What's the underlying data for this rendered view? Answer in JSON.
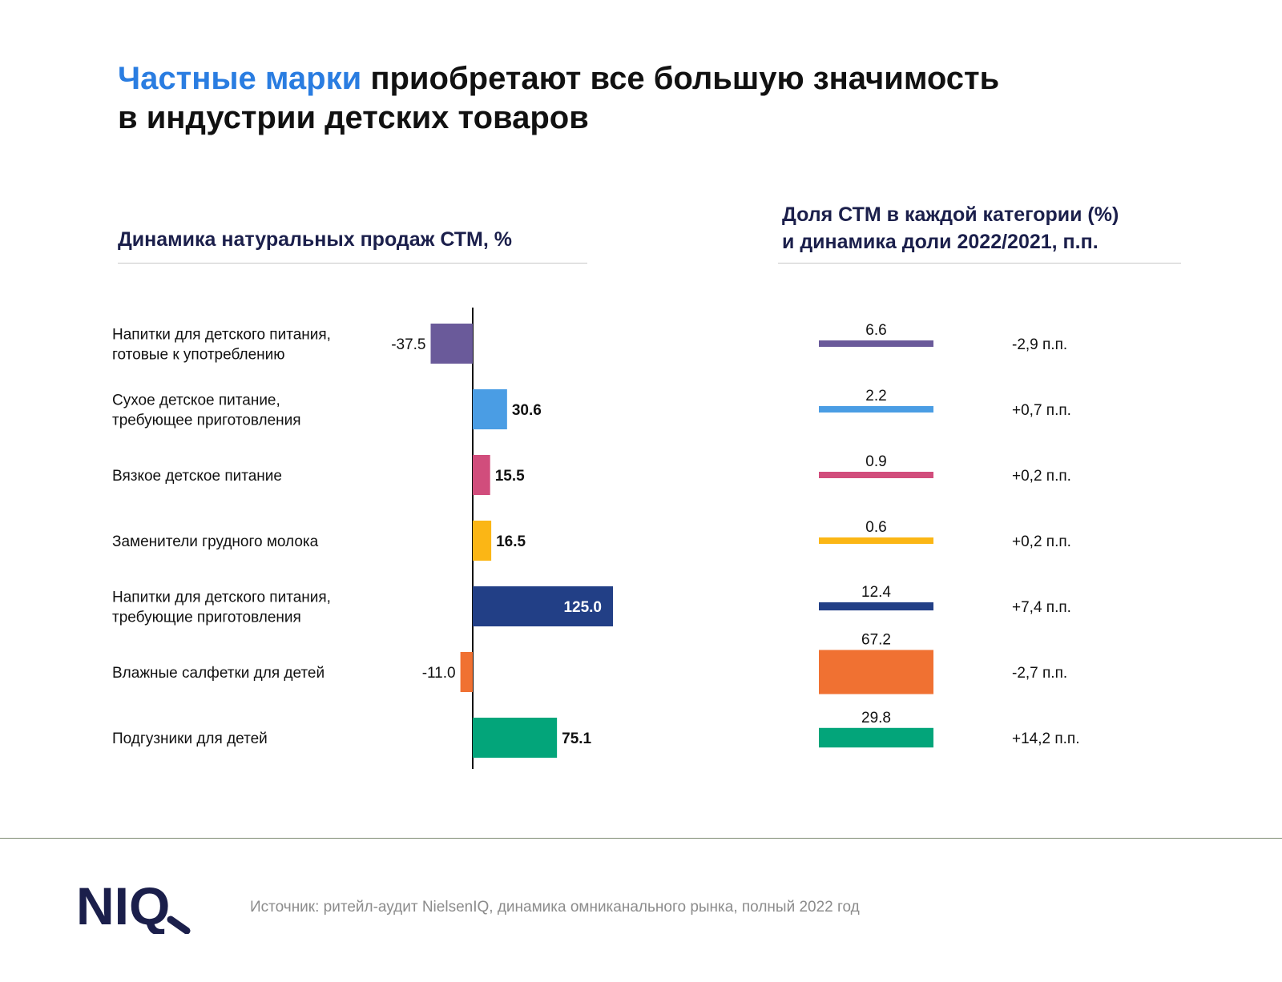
{
  "headline": {
    "accent": "Частные марки",
    "line1_rest": " приобретают все большую значимость",
    "line2": "в индустрии детских товаров"
  },
  "left_title": "Динамика натуральных продаж СТМ, %",
  "right_title": {
    "line1": "Доля СТМ в каждой категории (%)",
    "line2": "и динамика доли 2022/2021, п.п."
  },
  "categories": [
    {
      "lines": [
        "Напитки для детского питания,",
        "готовые к употреблению"
      ]
    },
    {
      "lines": [
        "Сухое детское питание,",
        "требующее приготовления"
      ]
    },
    {
      "lines": [
        "Вязкое детское питание"
      ]
    },
    {
      "lines": [
        "Заменители грудного молока"
      ]
    },
    {
      "lines": [
        "Напитки для детского питания,",
        "требующие приготовления"
      ]
    },
    {
      "lines": [
        "Влажные салфетки для детей"
      ]
    },
    {
      "lines": [
        "Подгузники для детей"
      ]
    }
  ],
  "chart_data": [
    {
      "type": "bar",
      "orientation": "horizontal",
      "title": "Динамика натуральных продаж СТМ, %",
      "categories": [
        "Напитки для детского питания, готовые к употреблению",
        "Сухое детское питание, требующее приготовления",
        "Вязкое детское питание",
        "Заменители грудного молока",
        "Напитки для детского питания, требующие приготовления",
        "Влажные салфетки для детей",
        "Подгузники для детей"
      ],
      "values": [
        -37.5,
        30.6,
        15.5,
        16.5,
        125.0,
        -11.0,
        75.1
      ],
      "labels": [
        "-37.5",
        "30.6",
        "15.5",
        "16.5",
        "125.0",
        "-11.0",
        "75.1"
      ],
      "colors": [
        "#6a5a9a",
        "#4a9de4",
        "#d14d7c",
        "#fbb615",
        "#223f86",
        "#f07132",
        "#03a57a"
      ],
      "grid": false
    },
    {
      "type": "bar",
      "title": "Доля СТМ в каждой категории (%) и динамика доли 2022/2021, п.п.",
      "categories": [
        "Напитки для детского питания, готовые к употреблению",
        "Сухое детское питание, требующее приготовления",
        "Вязкое детское питание",
        "Заменители грудного молока",
        "Напитки для детского питания, требующие приготовления",
        "Влажные салфетки для детей",
        "Подгузники для детей"
      ],
      "values": [
        6.6,
        2.2,
        0.9,
        0.6,
        12.4,
        67.2,
        29.8
      ],
      "labels": [
        "6.6",
        "2.2",
        "0.9",
        "0.6",
        "12.4",
        "67.2",
        "29.8"
      ],
      "changes": [
        "-2,9 п.п.",
        "+0,7 п.п.",
        "+0,2 п.п.",
        "+0,2 п.п.",
        "+7,4 п.п.",
        "-2,7 п.п.",
        "+14,2 п.п."
      ],
      "colors": [
        "#6a5a9a",
        "#4a9de4",
        "#d14d7c",
        "#fbb615",
        "#223f86",
        "#f07132",
        "#03a57a"
      ],
      "grid": false
    }
  ],
  "source": "Источник: ритейл-аудит NielsenIQ, динамика омниканального рынка, полный 2022 год",
  "logo": {
    "text": "NIQ",
    "color": "#1b1f4b"
  }
}
